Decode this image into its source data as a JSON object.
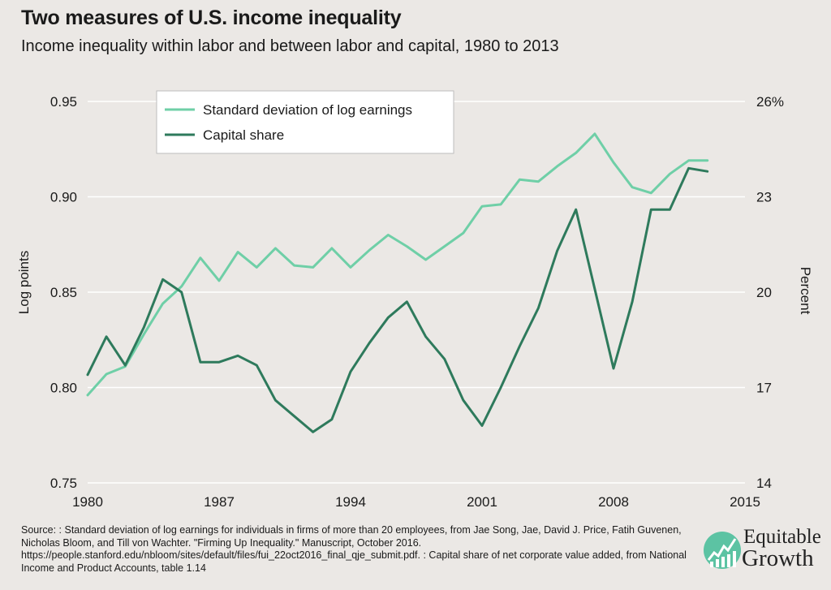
{
  "header": {
    "title": "Two measures of U.S. income inequality",
    "subtitle": "Income inequality within labor and between labor and capital, 1980 to 2013"
  },
  "chart_data": {
    "type": "line",
    "xlabel": "",
    "ylabel_left": "Log points",
    "ylabel_right": "Percent",
    "xlim": [
      1980,
      2015
    ],
    "x_ticks": [
      1980,
      1987,
      1994,
      2001,
      2008,
      2015
    ],
    "y_left_lim": [
      0.75,
      0.95
    ],
    "y_left_ticks": [
      "0.75",
      "0.80",
      "0.85",
      "0.90",
      "0.95"
    ],
    "y_right_lim": [
      14,
      26
    ],
    "y_right_ticks": [
      "14",
      "17",
      "20",
      "23",
      "26%"
    ],
    "grid": "horizontal",
    "legend_placement": "top-left",
    "colors": {
      "std_dev": "#6fcfa7",
      "capital": "#2e7a5c",
      "grid": "#ffffff",
      "background": "#ebe8e5"
    },
    "series": [
      {
        "name": "Standard deviation of log earnings",
        "axis": "left",
        "color_key": "std_dev",
        "x": [
          1980,
          1981,
          1982,
          1983,
          1984,
          1985,
          1986,
          1987,
          1988,
          1989,
          1990,
          1991,
          1992,
          1993,
          1994,
          1995,
          1996,
          1997,
          1998,
          1999,
          2000,
          2001,
          2002,
          2003,
          2004,
          2005,
          2006,
          2007,
          2008,
          2009,
          2010,
          2011,
          2012,
          2013
        ],
        "values": [
          0.796,
          0.807,
          0.811,
          0.828,
          0.844,
          0.853,
          0.868,
          0.856,
          0.871,
          0.863,
          0.873,
          0.864,
          0.863,
          0.873,
          0.863,
          0.872,
          0.88,
          0.874,
          0.867,
          0.874,
          0.881,
          0.895,
          0.896,
          0.909,
          0.908,
          0.916,
          0.923,
          0.933,
          0.918,
          0.905,
          0.902,
          0.912,
          0.919,
          0.919
        ]
      },
      {
        "name": "Capital share",
        "axis": "right",
        "color_key": "capital",
        "x": [
          1980,
          1981,
          1982,
          1983,
          1984,
          1985,
          1986,
          1987,
          1988,
          1989,
          1990,
          1991,
          1992,
          1993,
          1994,
          1995,
          1996,
          1997,
          1998,
          1999,
          2000,
          2001,
          2002,
          2003,
          2004,
          2005,
          2006,
          2007,
          2008,
          2009,
          2010,
          2011,
          2012,
          2013
        ],
        "values": [
          17.4,
          18.6,
          17.7,
          18.9,
          20.4,
          20.0,
          17.8,
          17.8,
          18.0,
          17.7,
          16.6,
          16.1,
          15.6,
          16.0,
          17.5,
          18.4,
          19.2,
          19.7,
          18.6,
          17.9,
          16.6,
          15.8,
          17.0,
          18.3,
          19.5,
          21.3,
          22.6,
          20.1,
          17.6,
          19.7,
          22.6,
          22.6,
          23.9,
          23.8
        ]
      }
    ]
  },
  "source": {
    "text": "Source: : Standard deviation of log earnings for individuals in firms of more than 20 employees, from Jae Song, Jae, David J. Price, Fatih Guvenen, Nicholas Bloom, and Till von Wachter. \"Firming Up Inequality.\" Manuscript, October 2016. https://people.stanford.edu/nbloom/sites/default/files/fui_22oct2016_final_qje_submit.pdf. : Capital share of net corporate value added, from National Income and Product Accounts, table 1.14"
  },
  "logo": {
    "line1": "Equitable",
    "line2": "Growth",
    "circle_color": "#5cc3a3",
    "icon": "growth-chart-icon"
  }
}
